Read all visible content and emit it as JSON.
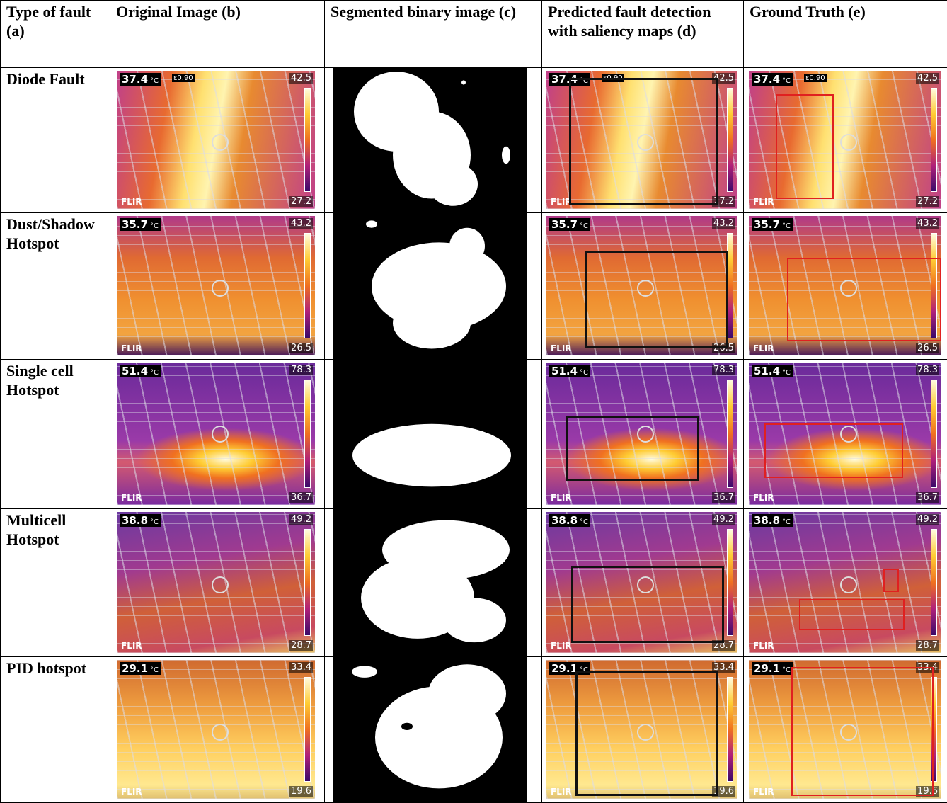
{
  "header": [
    "Type of fault (a)",
    "Original Image (b)",
    "Segmented binary image (c)",
    "Predicted fault detection with saliency maps (d)",
    "Ground Truth (e)"
  ],
  "brand": "FLIR",
  "rows": [
    {
      "fault": "Diode Fault",
      "spot": "37.4",
      "unit": "°C",
      "emissivity": "ε0.90",
      "max": "42.5",
      "min": "27.2"
    },
    {
      "fault": "Dust/Shadow Hotspot",
      "spot": "35.7",
      "unit": "°C",
      "max": "43.2",
      "min": "26.5"
    },
    {
      "fault": "Single cell Hotspot",
      "spot": "51.4",
      "unit": "°C",
      "max": "78.3",
      "min": "36.7"
    },
    {
      "fault": "Multicell Hotspot",
      "spot": "38.8",
      "unit": "°C",
      "max": "49.2",
      "min": "28.7"
    },
    {
      "fault": "PID hotspot",
      "spot": "29.1",
      "unit": "°C",
      "max": "33.4",
      "min": "19.6"
    }
  ]
}
